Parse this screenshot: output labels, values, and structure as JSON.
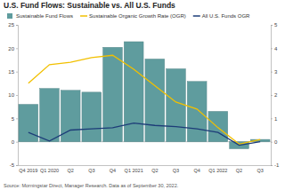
{
  "chart_data": {
    "type": "bar",
    "title": "U.S. Fund Flows: Sustainable vs. All U.S. Funds",
    "source": "Source: Morningstar Direct, Manager Research. Data as of September 30, 2022.",
    "categories": [
      "Q4 2019",
      "Q1 2020",
      "Q2",
      "Q3",
      "Q4",
      "Q1 2021",
      "Q2",
      "Q3",
      "Q4",
      "Q1 2022",
      "Q2",
      "Q3"
    ],
    "series": [
      {
        "name": "Sustainable Fund Flows",
        "type": "bar",
        "color": "#5f9c9e",
        "values": [
          8,
          11.4,
          11,
          10.6,
          20.2,
          21.4,
          17.7,
          15.6,
          12.9,
          6.5,
          -1.5,
          0.5
        ]
      },
      {
        "name": "Sustainable Organic Growth Rate (OGR)",
        "type": "line",
        "axis": "y2",
        "color": "#f2c000",
        "values": [
          2.5,
          3.3,
          3.4,
          3.6,
          3.7,
          3.1,
          2.4,
          1.7,
          1.4,
          0.6,
          -0.1,
          0.1
        ]
      },
      {
        "name": "All U.S. Funds OGR",
        "type": "line",
        "axis": "y2",
        "color": "#1d3c78",
        "values": [
          0.4,
          0.03,
          0.5,
          0.55,
          0.6,
          0.8,
          0.7,
          0.65,
          0.55,
          0.4,
          -0.15,
          0
        ]
      }
    ],
    "ylim": [
      -5,
      25
    ],
    "yticks": [
      -5,
      0,
      5,
      10,
      15,
      20,
      25
    ],
    "y2lim": [
      -1,
      5
    ],
    "y2ticks": [
      -1,
      0,
      1,
      2,
      3,
      4,
      5
    ],
    "legend": "top",
    "grid": false
  }
}
